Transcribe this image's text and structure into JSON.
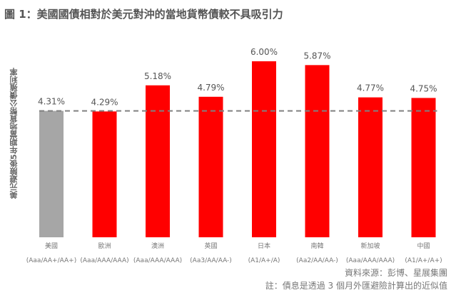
{
  "title": "圖 1：美國國債相對於美元對沖的當地貨幣債較不具吸引力",
  "footer": {
    "source": "資料來源：彭博、星展集團",
    "note": "註：債息是透過 3 個月外匯避險計算出的近似值"
  },
  "chart_data": {
    "type": "bar",
    "ylabel": "美元避險後5年期當地貨幣公債殖利率",
    "categories": [
      "美國",
      "歐洲",
      "澳洲",
      "英國",
      "日本",
      "南韓",
      "新加坡",
      "中國"
    ],
    "ratings": [
      "(Aaa/AA+/AA+)",
      "(Aaa/AAA/AAA)",
      "(Aaa/AAA/AAA)",
      "(Aa3/AA/AA-)",
      "(A1/A+/A)",
      "(Aa2/AA/AA-)",
      "(Aaa/AAA/AAA)",
      "(A1/A+/A+)"
    ],
    "values": [
      4.31,
      4.29,
      5.18,
      4.79,
      6.0,
      5.87,
      4.77,
      4.75
    ],
    "value_labels": [
      "4.31%",
      "4.29%",
      "5.18%",
      "4.79%",
      "6.00%",
      "5.87%",
      "4.77%",
      "4.75%"
    ],
    "reference_line": 4.31,
    "ylim": [
      0,
      6.0
    ],
    "colors": {
      "highlight": "#a6a6a6",
      "bars": "#ff0000",
      "reference": "#808080"
    },
    "grid": false,
    "legend": "none"
  }
}
